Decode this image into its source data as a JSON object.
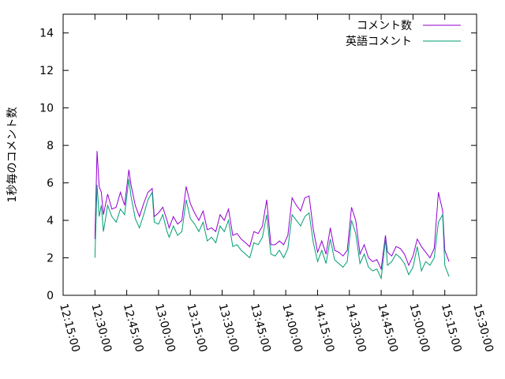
{
  "chart_data": {
    "type": "line",
    "ylabel": "1秒毎のコメント数",
    "xlabel": "",
    "ylim": [
      0,
      15
    ],
    "yticks": [
      0,
      2,
      4,
      6,
      8,
      10,
      12,
      14
    ],
    "xlim": [
      "12:15:00",
      "15:30:00"
    ],
    "xticks": [
      "12:15:00",
      "12:30:00",
      "12:45:00",
      "13:00:00",
      "13:15:00",
      "13:30:00",
      "13:45:00",
      "14:00:00",
      "14:15:00",
      "14:30:00",
      "14:45:00",
      "15:00:00",
      "15:15:00",
      "15:30:00"
    ],
    "legend_position": "top-right",
    "grid": false,
    "x": [
      "12:30:00",
      "12:31:00",
      "12:32:00",
      "12:33:00",
      "12:34:00",
      "12:36:00",
      "12:38:00",
      "12:40:00",
      "12:42:00",
      "12:44:00",
      "12:46:00",
      "12:47:00",
      "12:49:00",
      "12:51:00",
      "12:53:00",
      "12:55:00",
      "12:57:00",
      "12:58:00",
      "13:00:00",
      "13:02:00",
      "13:04:00",
      "13:05:00",
      "13:07:00",
      "13:09:00",
      "13:11:00",
      "13:13:00",
      "13:15:00",
      "13:17:00",
      "13:19:00",
      "13:21:00",
      "13:23:00",
      "13:25:00",
      "13:27:00",
      "13:29:00",
      "13:31:00",
      "13:33:00",
      "13:35:00",
      "13:37:00",
      "13:39:00",
      "13:41:00",
      "13:43:00",
      "13:45:00",
      "13:47:00",
      "13:49:00",
      "13:51:00",
      "13:53:00",
      "13:55:00",
      "13:57:00",
      "13:59:00",
      "14:01:00",
      "14:03:00",
      "14:05:00",
      "14:07:00",
      "14:09:00",
      "14:11:00",
      "14:13:00",
      "14:15:00",
      "14:17:00",
      "14:19:00",
      "14:21:00",
      "14:23:00",
      "14:25:00",
      "14:27:00",
      "14:29:00",
      "14:31:00",
      "14:33:00",
      "14:35:00",
      "14:37:00",
      "14:39:00",
      "14:41:00",
      "14:43:00",
      "14:45:00",
      "14:47:00",
      "14:48:00",
      "14:50:00",
      "14:52:00",
      "14:54:00",
      "14:56:00",
      "14:58:00",
      "15:00:00",
      "15:02:00",
      "15:04:00",
      "15:06:00",
      "15:08:00",
      "15:10:00",
      "15:12:00",
      "15:14:00",
      "15:15:00",
      "15:17:00"
    ],
    "series": [
      {
        "name": "コメント数",
        "color": "#9400d3",
        "values": [
          3.0,
          7.7,
          5.8,
          5.5,
          4.3,
          5.4,
          4.6,
          4.7,
          5.5,
          4.8,
          6.7,
          5.9,
          4.8,
          4.2,
          4.9,
          5.5,
          5.7,
          4.2,
          4.4,
          4.7,
          4.0,
          3.6,
          4.2,
          3.8,
          4.0,
          5.8,
          4.9,
          4.4,
          4.0,
          4.5,
          3.5,
          3.6,
          3.4,
          4.3,
          4.0,
          4.6,
          3.2,
          3.3,
          3.0,
          2.8,
          2.6,
          3.4,
          3.3,
          3.7,
          5.1,
          2.7,
          2.7,
          2.9,
          2.7,
          3.2,
          5.2,
          4.8,
          4.5,
          5.2,
          5.3,
          3.5,
          2.3,
          2.9,
          2.2,
          3.6,
          2.4,
          2.3,
          2.1,
          2.4,
          4.7,
          4.0,
          2.2,
          2.7,
          2.0,
          1.8,
          1.9,
          1.4,
          3.2,
          2.3,
          2.1,
          2.6,
          2.5,
          2.2,
          1.6,
          2.1,
          3.0,
          2.6,
          2.3,
          2.0,
          2.5,
          5.5,
          4.5,
          2.4,
          1.8
        ]
      },
      {
        "name": "英語コメント",
        "color": "#009e73",
        "values": [
          2.0,
          5.9,
          4.2,
          4.8,
          3.4,
          4.8,
          4.2,
          3.9,
          4.6,
          4.3,
          6.2,
          5.3,
          4.1,
          3.6,
          4.3,
          5.1,
          5.5,
          3.9,
          3.8,
          4.3,
          3.4,
          3.1,
          3.7,
          3.2,
          3.4,
          5.1,
          4.1,
          3.8,
          3.4,
          3.9,
          2.9,
          3.1,
          2.8,
          3.7,
          3.4,
          4.0,
          2.6,
          2.7,
          2.4,
          2.2,
          2.0,
          2.8,
          2.7,
          3.1,
          4.3,
          2.2,
          2.1,
          2.4,
          2.0,
          2.5,
          4.3,
          4.0,
          3.7,
          4.2,
          4.4,
          2.8,
          1.8,
          2.4,
          1.7,
          3.0,
          1.9,
          1.7,
          1.5,
          1.8,
          4.0,
          3.3,
          1.7,
          2.2,
          1.5,
          1.3,
          1.4,
          0.9,
          3.0,
          1.6,
          1.8,
          2.2,
          2.0,
          1.7,
          1.1,
          1.5,
          2.6,
          1.3,
          1.8,
          1.6,
          2.0,
          3.9,
          4.3,
          1.6,
          1.0
        ]
      }
    ]
  }
}
